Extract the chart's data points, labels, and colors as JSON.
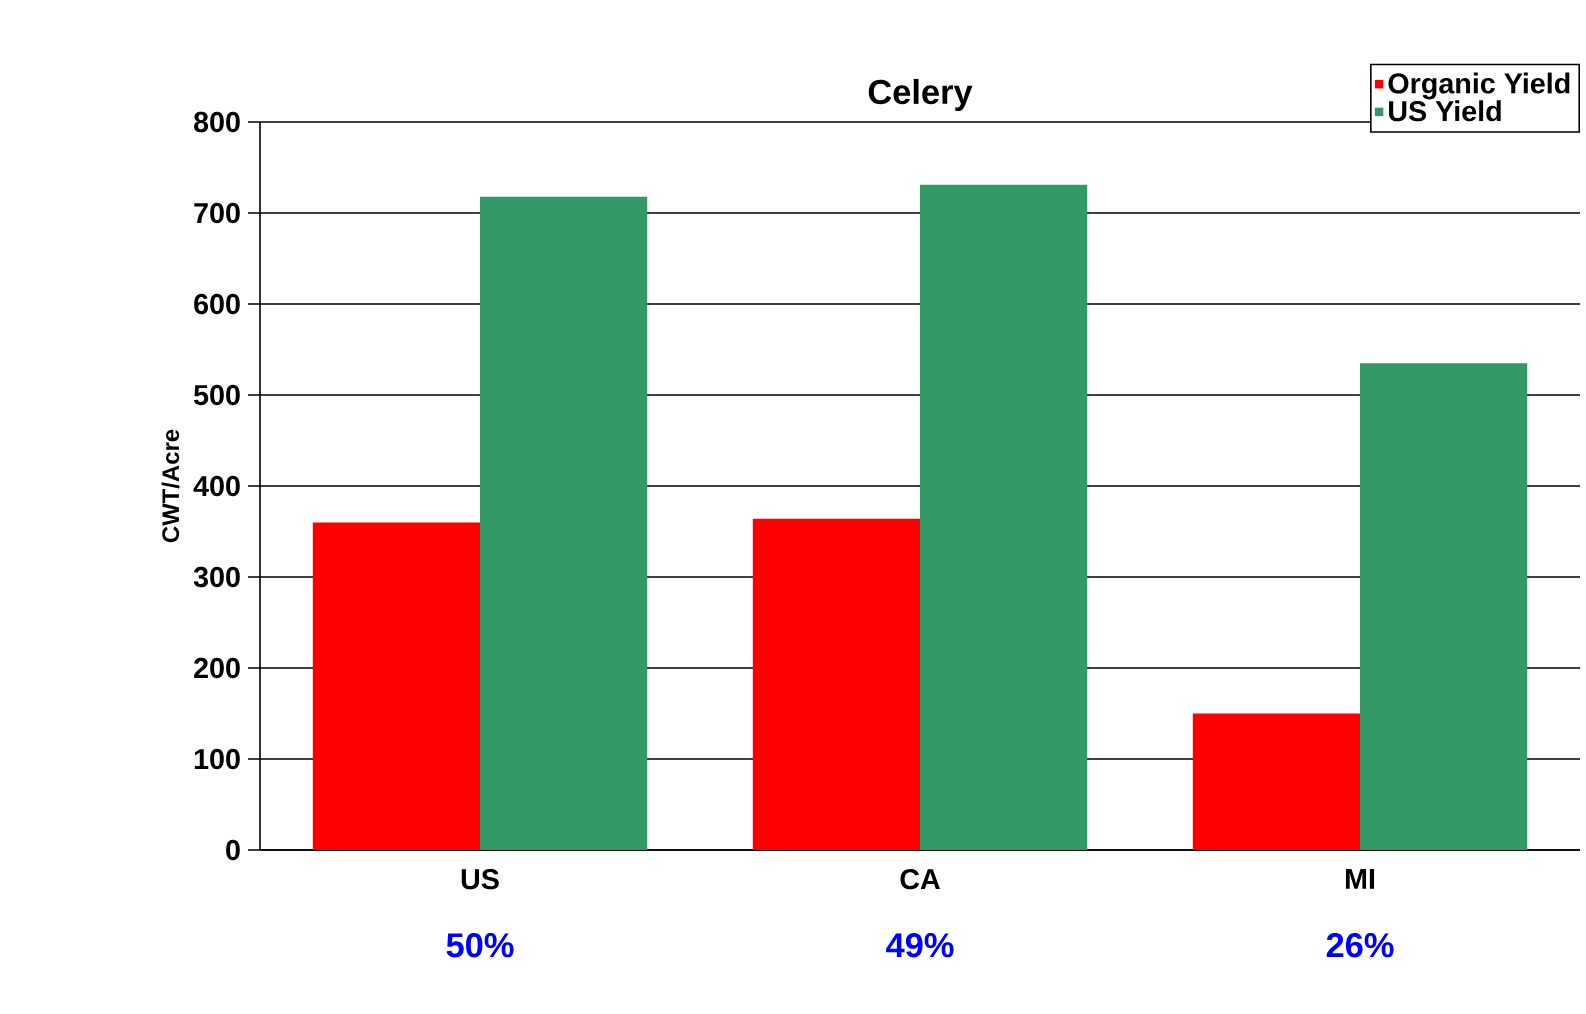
{
  "chart_data": {
    "type": "bar",
    "title": "Celery",
    "ylabel": "CWT/Acre",
    "categories": [
      "US",
      "CA",
      "MI"
    ],
    "series": [
      {
        "name": "Organic Yield",
        "color": "#ff0000",
        "values": [
          360,
          364,
          150
        ]
      },
      {
        "name": "US Yield",
        "color": "#339966",
        "values": [
          718,
          731,
          535
        ]
      }
    ],
    "ylim": [
      0,
      800
    ],
    "yticks": [
      0,
      100,
      200,
      300,
      400,
      500,
      600,
      700,
      800
    ],
    "grid": "y",
    "legend": "top right",
    "annotations": [
      "50%",
      "49%",
      "26%"
    ]
  }
}
